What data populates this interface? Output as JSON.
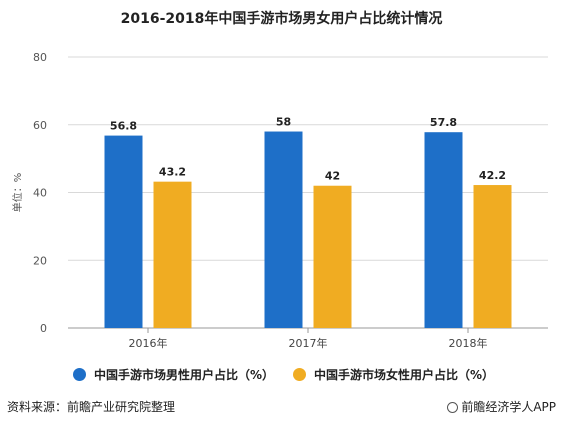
{
  "title": "2016-2018年中国手游市场男女用户占比统计情况",
  "chart_data": {
    "type": "bar",
    "categories": [
      "2016年",
      "2017年",
      "2018年"
    ],
    "series": [
      {
        "name": "中国手游市场男性用户占比（%）",
        "values": [
          56.8,
          58,
          57.8
        ],
        "labels": [
          "56.8",
          "58",
          "57.8"
        ],
        "color": "#1e6fc8"
      },
      {
        "name": "中国手游市场女性用户占比（%）",
        "values": [
          43.2,
          42,
          42.2
        ],
        "labels": [
          "43.2",
          "42",
          "42.2"
        ],
        "color": "#f0ac22"
      }
    ],
    "ylabel": "单位：%",
    "ylim": [
      0,
      80
    ],
    "yticks": [
      0,
      20,
      40,
      60,
      80
    ],
    "grid": true,
    "legend_position": "bottom"
  },
  "footer": {
    "source": "资料来源：前瞻产业研究院整理",
    "brand": "前瞻经济学人APP",
    "brand_icon": "brand-logo-icon"
  }
}
